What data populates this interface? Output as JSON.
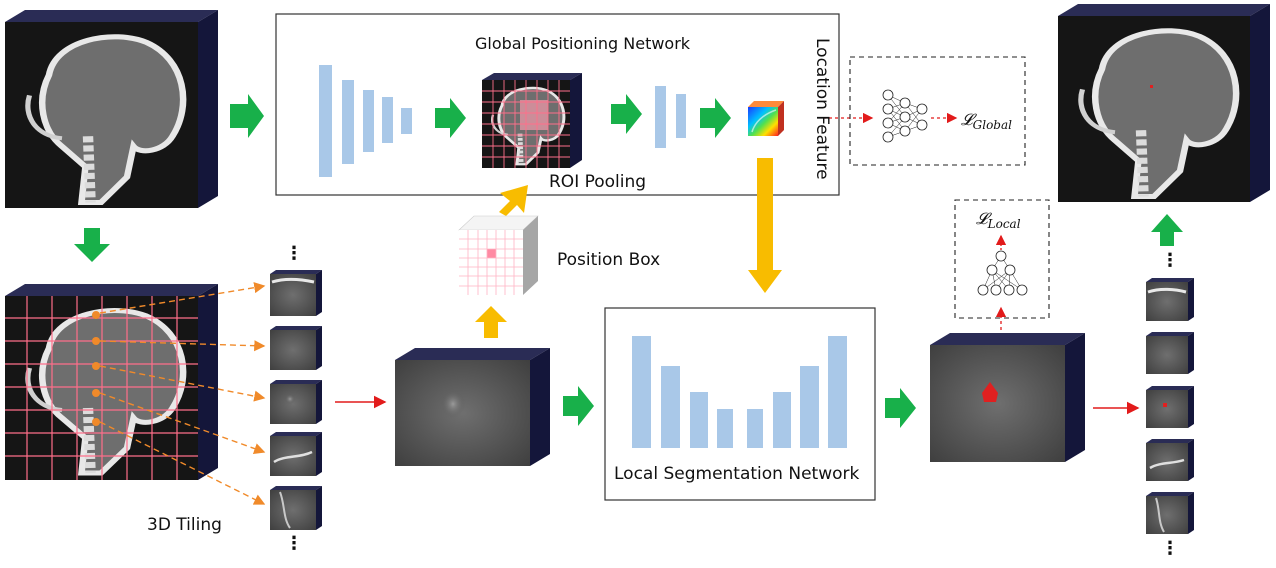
{
  "labels": {
    "global_network": "Global Positioning Network",
    "roi_pooling": "ROI Pooling",
    "location_feature": "Location Feature",
    "position_box": "Position Box",
    "local_network": "Local Segmentation Network",
    "tiling": "3D Tiling",
    "loss_global": "𝓛",
    "loss_global_sub": "Global",
    "loss_local": "𝓛",
    "loss_local_sub": "Local",
    "ellipsis": "⋮"
  },
  "colors": {
    "flow_arrow": "#18b04a",
    "position_arrow": "#f8bc00",
    "network_bar": "#a9c8e8",
    "volume_dark": "#1e2040",
    "volume_side": "#14163a",
    "grid_line": "#ff6f8a",
    "tile_arrow": "#f08a2a",
    "red_arrow": "#e21b1b"
  }
}
